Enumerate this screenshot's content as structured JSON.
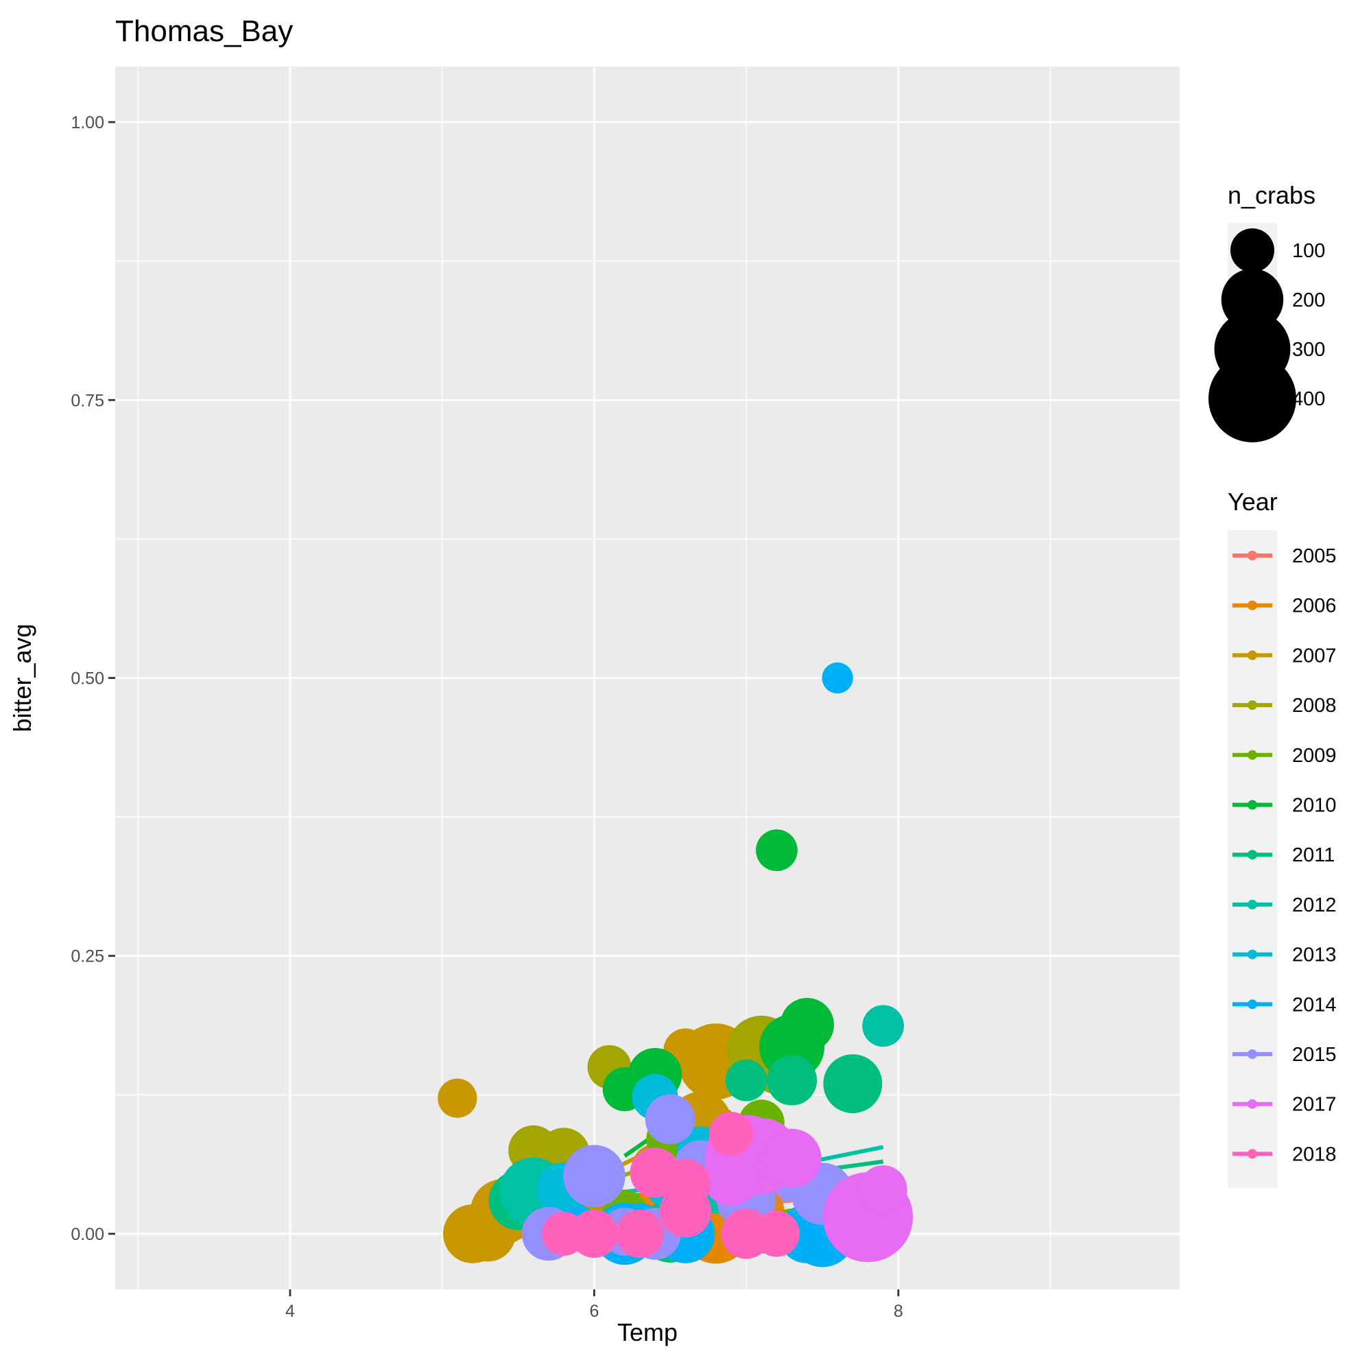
{
  "chart_data": {
    "type": "scatter",
    "title": "Thomas_Bay",
    "xlabel": "Temp",
    "ylabel": "bitter_avg",
    "xlim": [
      2.85,
      9.85
    ],
    "ylim": [
      -0.05,
      1.05
    ],
    "x_ticks": [
      4,
      6,
      8
    ],
    "x_tick_labels": [
      "4",
      "6",
      "8"
    ],
    "y_ticks": [
      0,
      0.25,
      0.5,
      0.75,
      1.0
    ],
    "y_tick_labels": [
      "0.00",
      "0.25",
      "0.50",
      "0.75",
      "1.00"
    ],
    "grid": true,
    "legend_position": "right",
    "size_legend": {
      "title": "n_crabs",
      "values": [
        100,
        200,
        300,
        400
      ],
      "labels": [
        "100",
        "200",
        "300",
        "400"
      ]
    },
    "color_legend": {
      "title": "Year"
    },
    "series": [
      {
        "name": "2005",
        "color": "#F8766D",
        "points": [
          [
            6.3,
            0.005,
            120
          ],
          [
            6.5,
            0.02,
            150
          ],
          [
            6.8,
            0.03,
            100
          ],
          [
            7.2,
            0.07,
            120
          ],
          [
            7.0,
            0.01,
            160
          ]
        ],
        "trend": [
          [
            5.9,
            0.01
          ],
          [
            7.3,
            0.03
          ]
        ]
      },
      {
        "name": "2006",
        "color": "#E58700",
        "points": [
          [
            6.0,
            0.005,
            140
          ],
          [
            6.4,
            0.02,
            120
          ],
          [
            6.8,
            0.005,
            260
          ],
          [
            7.1,
            0.02,
            110
          ],
          [
            6.6,
            0.03,
            130
          ]
        ],
        "trend": [
          [
            5.9,
            0.015
          ],
          [
            7.1,
            0.025
          ]
        ]
      },
      {
        "name": "2007",
        "color": "#C99800",
        "points": [
          [
            5.1,
            0.122,
            80
          ],
          [
            5.2,
            0.0,
            180
          ],
          [
            5.3,
            0.0,
            160
          ],
          [
            5.4,
            0.02,
            220
          ],
          [
            6.6,
            0.165,
            100
          ],
          [
            6.8,
            0.155,
            300
          ],
          [
            6.7,
            0.1,
            200
          ],
          [
            6.4,
            0.06,
            110
          ]
        ],
        "trend": [
          [
            5.4,
            0.01
          ],
          [
            6.9,
            0.11
          ]
        ]
      },
      {
        "name": "2008",
        "color": "#A3A500",
        "points": [
          [
            5.6,
            0.075,
            130
          ],
          [
            5.8,
            0.072,
            140
          ],
          [
            6.1,
            0.15,
            100
          ],
          [
            7.1,
            0.165,
            250
          ],
          [
            7.2,
            0.15,
            150
          ],
          [
            6.0,
            0.003,
            120
          ],
          [
            6.8,
            0.06,
            130
          ],
          [
            6.6,
            0.05,
            110
          ]
        ],
        "trend": [
          [
            5.5,
            0.02
          ],
          [
            7.2,
            0.1
          ]
        ]
      },
      {
        "name": "2009",
        "color": "#6BB100",
        "points": [
          [
            6.5,
            0.085,
            120
          ],
          [
            7.1,
            0.1,
            110
          ],
          [
            7.3,
            0.003,
            100
          ],
          [
            6.8,
            0.04,
            110
          ],
          [
            6.2,
            0.02,
            100
          ]
        ],
        "trend": [
          [
            5.6,
            0.025
          ],
          [
            7.2,
            0.045
          ]
        ]
      },
      {
        "name": "2010",
        "color": "#00BA38",
        "points": [
          [
            6.2,
            0.13,
            100
          ],
          [
            6.4,
            0.143,
            150
          ],
          [
            7.2,
            0.345,
            90
          ],
          [
            7.4,
            0.188,
            150
          ],
          [
            7.3,
            0.168,
            220
          ],
          [
            6.6,
            0.04,
            110
          ],
          [
            6.9,
            0.05,
            120
          ]
        ],
        "trend": [
          [
            6.2,
            0.07
          ],
          [
            7.2,
            0.165
          ]
        ]
      },
      {
        "name": "2011",
        "color": "#00BF7D",
        "points": [
          [
            5.5,
            0.03,
            180
          ],
          [
            6.6,
            0.004,
            140
          ],
          [
            7.0,
            0.138,
            90
          ],
          [
            7.3,
            0.138,
            130
          ],
          [
            7.7,
            0.135,
            180
          ],
          [
            6.5,
            0.002,
            200
          ],
          [
            6.7,
            0.05,
            130
          ]
        ],
        "trend": [
          [
            5.5,
            0.02
          ],
          [
            7.9,
            0.065
          ]
        ]
      },
      {
        "name": "2012",
        "color": "#00C1A3",
        "points": [
          [
            5.6,
            0.038,
            240
          ],
          [
            7.9,
            0.187,
            90
          ],
          [
            7.5,
            0.02,
            130
          ],
          [
            6.8,
            0.04,
            120
          ]
        ],
        "trend": [
          [
            5.5,
            0.012
          ],
          [
            7.9,
            0.078
          ]
        ]
      },
      {
        "name": "2013",
        "color": "#00BCD8",
        "points": [
          [
            5.8,
            0.04,
            150
          ],
          [
            6.4,
            0.123,
            110
          ],
          [
            6.7,
            0.075,
            120
          ],
          [
            7.2,
            0.06,
            140
          ],
          [
            6.5,
            0.045,
            130
          ],
          [
            7.0,
            0.035,
            160
          ],
          [
            6.9,
            0.06,
            170
          ]
        ],
        "trend": [
          [
            5.7,
            0.03
          ],
          [
            7.3,
            0.055
          ]
        ]
      },
      {
        "name": "2014",
        "color": "#00B0F6",
        "points": [
          [
            7.6,
            0.5,
            50
          ],
          [
            6.2,
            0.0,
            200
          ],
          [
            6.6,
            0.0,
            180
          ],
          [
            7.4,
            0.0,
            180
          ],
          [
            7.5,
            0.0,
            230
          ],
          [
            7.7,
            0.003,
            120
          ],
          [
            7.8,
            0.005,
            100
          ],
          [
            7.1,
            0.003,
            110
          ],
          [
            5.9,
            0.005,
            100
          ],
          [
            6.3,
            0.005,
            130
          ]
        ],
        "trend": [
          [
            5.9,
            0.008
          ],
          [
            7.8,
            0.018
          ]
        ]
      },
      {
        "name": "2015",
        "color": "#9590FF",
        "points": [
          [
            5.7,
            0.0,
            150
          ],
          [
            6.0,
            0.052,
            200
          ],
          [
            6.5,
            0.103,
            130
          ],
          [
            6.7,
            0.06,
            150
          ],
          [
            7.0,
            0.03,
            180
          ],
          [
            7.3,
            0.055,
            150
          ],
          [
            7.5,
            0.036,
            200
          ],
          [
            6.4,
            0.0,
            140
          ],
          [
            6.2,
            0.002,
            120
          ]
        ],
        "trend": [
          [
            5.8,
            0.015
          ],
          [
            7.6,
            0.035
          ]
        ]
      },
      {
        "name": "2017",
        "color": "#E76BF3",
        "points": [
          [
            7.0,
            0.07,
            350
          ],
          [
            7.1,
            0.07,
            300
          ],
          [
            7.3,
            0.068,
            180
          ],
          [
            7.8,
            0.015,
            420
          ],
          [
            7.9,
            0.04,
            120
          ],
          [
            6.9,
            0.05,
            160
          ]
        ],
        "trend": [
          [
            6.9,
            0.08
          ],
          [
            7.8,
            0.013
          ]
        ]
      },
      {
        "name": "2018",
        "color": "#FF62BC",
        "points": [
          [
            5.8,
            0.0,
            100
          ],
          [
            6.0,
            0.0,
            120
          ],
          [
            6.4,
            0.055,
            130
          ],
          [
            6.6,
            0.045,
            130
          ],
          [
            6.9,
            0.09,
            100
          ],
          [
            7.0,
            0.0,
            130
          ],
          [
            7.2,
            0.0,
            110
          ],
          [
            6.3,
            0.0,
            120
          ],
          [
            6.6,
            0.02,
            140
          ]
        ],
        "trend": [
          [
            5.9,
            0.01
          ],
          [
            7.3,
            0.035
          ]
        ]
      }
    ]
  }
}
